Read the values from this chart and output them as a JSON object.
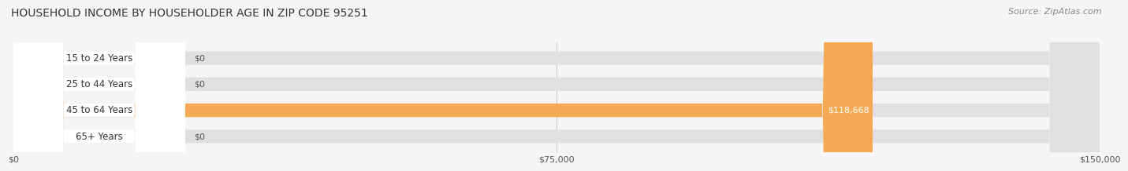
{
  "title": "HOUSEHOLD INCOME BY HOUSEHOLDER AGE IN ZIP CODE 95251",
  "source": "Source: ZipAtlas.com",
  "categories": [
    "15 to 24 Years",
    "25 to 44 Years",
    "45 to 64 Years",
    "65+ Years"
  ],
  "values": [
    0,
    0,
    118668,
    0
  ],
  "bar_colors": [
    "#9b9fd4",
    "#f07ca0",
    "#f5a952",
    "#f09aaa"
  ],
  "bar_label_colors": [
    "#555555",
    "#555555",
    "#ffffff",
    "#555555"
  ],
  "xlim": [
    0,
    150000
  ],
  "xtick_values": [
    0,
    75000,
    150000
  ],
  "xtick_labels": [
    "$0",
    "$75,000",
    "$150,000"
  ],
  "background_color": "#f5f5f5",
  "title_fontsize": 10,
  "source_fontsize": 8,
  "bar_height": 0.52,
  "bar_value_label": [
    "$0",
    "$0",
    "$118,668",
    "$0"
  ]
}
